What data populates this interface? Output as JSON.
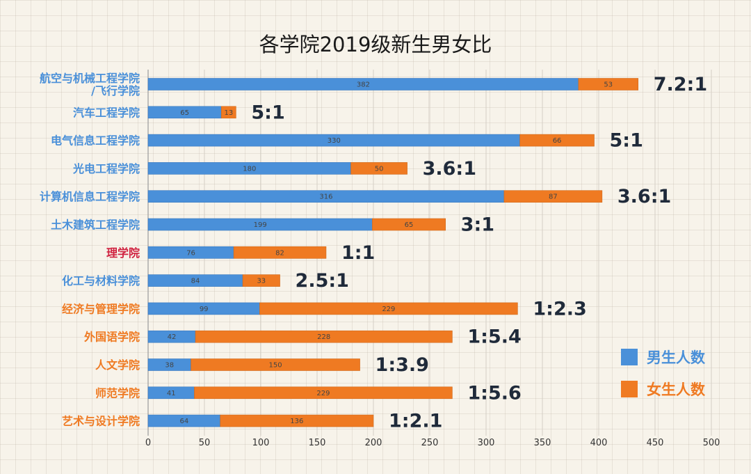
{
  "chart_data": {
    "type": "bar",
    "orientation": "horizontal",
    "stacked": true,
    "title": "各学院2019级新生男女比",
    "categories": [
      "航空与机械工程学院\n/飞行学院",
      "汽车工程学院",
      "电气信息工程学院",
      "光电工程学院",
      "计算机信息工程学院",
      "土木建筑工程学院",
      "理学院",
      "化工与材料学院",
      "经济与管理学院",
      "外国语学院",
      "人文学院",
      "师范学院",
      "艺术与设计学院"
    ],
    "category_colors": [
      "#4a90d9",
      "#4a90d9",
      "#4a90d9",
      "#4a90d9",
      "#4a90d9",
      "#4a90d9",
      "#d0213f",
      "#4a90d9",
      "#ef7a22",
      "#ef7a22",
      "#ef7a22",
      "#ef7a22",
      "#ef7a22"
    ],
    "series": [
      {
        "name": "男生人数",
        "color": "#4a90d9",
        "values": [
          382,
          65,
          330,
          180,
          316,
          199,
          76,
          84,
          99,
          42,
          38,
          41,
          64
        ]
      },
      {
        "name": "女生人数",
        "color": "#ef7a22",
        "values": [
          53,
          13,
          66,
          50,
          87,
          65,
          82,
          33,
          229,
          228,
          150,
          229,
          136
        ]
      }
    ],
    "ratios": [
      "7.2:1",
      "5:1",
      "5:1",
      "3.6:1",
      "3.6:1",
      "3:1",
      "1:1",
      "2.5:1",
      "1:2.3",
      "1:5.4",
      "1:3.9",
      "1:5.6",
      "1:2.1"
    ],
    "xlim": [
      0,
      500
    ],
    "xticks": [
      0,
      50,
      100,
      150,
      200,
      250,
      300,
      350,
      400,
      450,
      500
    ],
    "grid": true,
    "legend_position": "right"
  }
}
